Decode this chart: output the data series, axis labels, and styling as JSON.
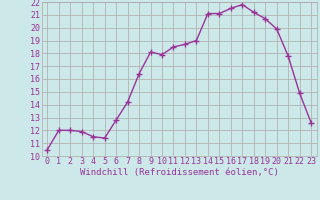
{
  "x": [
    0,
    1,
    2,
    3,
    4,
    5,
    6,
    7,
    8,
    9,
    10,
    11,
    12,
    13,
    14,
    15,
    16,
    17,
    18,
    19,
    20,
    21,
    22,
    23
  ],
  "y": [
    10.5,
    12.0,
    12.0,
    11.9,
    11.5,
    11.4,
    12.8,
    14.2,
    16.4,
    18.1,
    17.9,
    18.5,
    18.7,
    19.0,
    21.1,
    21.1,
    21.5,
    21.8,
    21.2,
    20.7,
    19.9,
    17.8,
    14.9,
    12.6
  ],
  "line_color": "#993399",
  "marker": "+",
  "marker_size": 5,
  "linewidth": 1.0,
  "xlabel": "Windchill (Refroidissement éolien,°C)",
  "xlim_min": -0.5,
  "xlim_max": 23.5,
  "ylim_min": 10,
  "ylim_max": 22,
  "yticks": [
    10,
    11,
    12,
    13,
    14,
    15,
    16,
    17,
    18,
    19,
    20,
    21,
    22
  ],
  "xticks": [
    0,
    1,
    2,
    3,
    4,
    5,
    6,
    7,
    8,
    9,
    10,
    11,
    12,
    13,
    14,
    15,
    16,
    17,
    18,
    19,
    20,
    21,
    22,
    23
  ],
  "background_color": "#cce8e8",
  "grid_color": "#aaaaaa",
  "tick_label_color": "#993399",
  "xlabel_color": "#993399",
  "xlabel_fontsize": 6.5,
  "tick_fontsize": 6.0,
  "fig_width": 3.2,
  "fig_height": 2.0,
  "dpi": 100
}
